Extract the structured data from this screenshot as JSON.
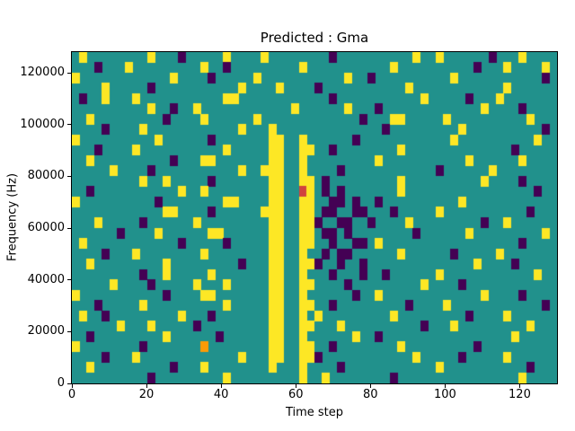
{
  "figure": {
    "title": "Predicted : Gma",
    "xlabel": "Time step",
    "ylabel": "Frequency (Hz)"
  },
  "chart_data": {
    "type": "heatmap",
    "title": "Predicted : Gma",
    "xlabel": "Time step",
    "ylabel": "Frequency (Hz)",
    "xlim": [
      0,
      130
    ],
    "ylim": [
      0,
      128000
    ],
    "x_ticks": [
      0,
      20,
      40,
      60,
      80,
      100,
      120
    ],
    "y_ticks": [
      0,
      20000,
      40000,
      60000,
      80000,
      100000,
      120000
    ],
    "colormap": "viridis",
    "legend": "none",
    "grid_cols": 64,
    "grid_rows": 32,
    "legend_note": "grid rows ordered top (highest frequency) to bottom (0 Hz); '.'=mid teal, 'y'=high yellow, 'p'=low purple, 'r'=red cell, 'o'=orange cell",
    "cell_values": {
      ".": 0.5,
      "y": 1.0,
      "p": 0.0,
      "r": 0.8,
      "o": 0.9
    },
    "palette": {
      ".": "#21918c",
      "y": "#fde725",
      "p": "#440154",
      "r": "#d0433e",
      "o": "#fb9b06"
    },
    "grid": [
      ".y........y...p.....y....y........p..........y..y......p...y....",
      "...p...y.........y..p.........y...........y..........p...y....y.",
      "y............y....p.....y...........y..p..........y...........p.",
      "....y.....p...........y....y....p...........y............y.....",
      ".p..y...y...........yy............p...........y.....p...y.......",
      "..........y..p..y............y......y...p.............y....p....",
      "..y.........p....y......y.............p...yy.....y..........y...",
      "....p....y............y...y..............p.........y..........p.",
      "y..........y......p.......yy..y......p............y..........y..",
      "...p....y...........y.....yy..yy..p........y..............p.....",
      "..y..........p...yy.......yy..y.........y...........y......y....",
      ".....y....p...........y..yyy..y....p............p......y.......",
      ".........y..y.....p.......yy..yy.p.........y..........y....p....",
      "..p...........y..y........yy..ry.p.p.......y.................p..",
      "y..........p........yy....yy..yy..pp.p..p..........y............",
      "............yy....p......yyy..yy.pp..pp...p.....y...........p...",
      "...y.....p......y.........yy..yyp..pp..p....y.........p..y......",
      "......p....y......yy......yy..yy.pp.p........p......y.........y.",
      ".y............p.....p.....yy..yy..p..pp.y..................p....",
      "....p...y........y........yy..y..p.pp......y......p.....y.......",
      "..y.........y.........p...yy..yyp..p..p..............y....p.....",
      ".........p..y.....y.......yy..y...p...p..p......y............y..",
      ".....y....p.....y...y.....yy..yy....p.........y....p............",
      "y...........p....yy.......yy..y......p..y.............y....p....",
      "...p.....y..........y.....yy..yy..p.........p....y............p.",
      ".y..p.........y...p.......yy..y.y.........y.........p....y......",
      "......y...y.....p.........yy..yy...y..........p...y.........y...",
      "..p.........y......p......yy..y......y..p.................y.....",
      "y........p.......o........yy..yy..p........y.........p..........",
      "....p...y.............y...yy..yyp............y.....p.....y......",
      "..y..........p...y........y...y....p............y...........p...",
      "..........p.........y.........y..y........p................y...."
    ]
  }
}
